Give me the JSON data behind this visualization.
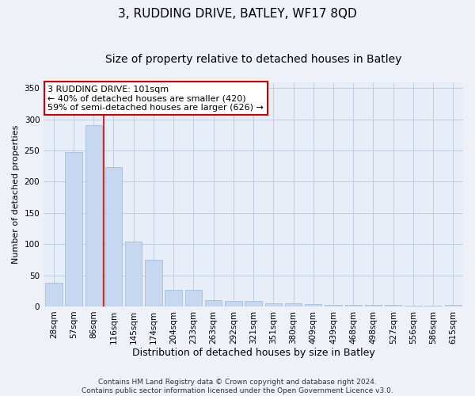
{
  "title": "3, RUDDING DRIVE, BATLEY, WF17 8QD",
  "subtitle": "Size of property relative to detached houses in Batley",
  "xlabel": "Distribution of detached houses by size in Batley",
  "ylabel": "Number of detached properties",
  "categories": [
    "28sqm",
    "57sqm",
    "86sqm",
    "116sqm",
    "145sqm",
    "174sqm",
    "204sqm",
    "233sqm",
    "263sqm",
    "292sqm",
    "321sqm",
    "351sqm",
    "380sqm",
    "409sqm",
    "439sqm",
    "468sqm",
    "498sqm",
    "527sqm",
    "556sqm",
    "586sqm",
    "615sqm"
  ],
  "values": [
    38,
    248,
    291,
    224,
    104,
    75,
    27,
    27,
    10,
    9,
    9,
    5,
    5,
    4,
    3,
    3,
    3,
    2,
    1,
    1,
    2
  ],
  "bar_color": "#c5d8f0",
  "bar_edge_color": "#9ab8d8",
  "grid_color": "#b8c8dc",
  "background_color": "#e8eef8",
  "fig_background_color": "#eef2f8",
  "annotation_box_text": "3 RUDDING DRIVE: 101sqm\n← 40% of detached houses are smaller (420)\n59% of semi-detached houses are larger (626) →",
  "annotation_box_color": "#ffffff",
  "annotation_box_edge_color": "#cc0000",
  "vline_x": 2.5,
  "vline_color": "#cc0000",
  "ylim": [
    0,
    360
  ],
  "yticks": [
    0,
    50,
    100,
    150,
    200,
    250,
    300,
    350
  ],
  "footer_line1": "Contains HM Land Registry data © Crown copyright and database right 2024.",
  "footer_line2": "Contains public sector information licensed under the Open Government Licence v3.0.",
  "title_fontsize": 11,
  "subtitle_fontsize": 10,
  "xlabel_fontsize": 9,
  "ylabel_fontsize": 8,
  "tick_fontsize": 7.5,
  "annotation_fontsize": 8,
  "footer_fontsize": 6.5
}
